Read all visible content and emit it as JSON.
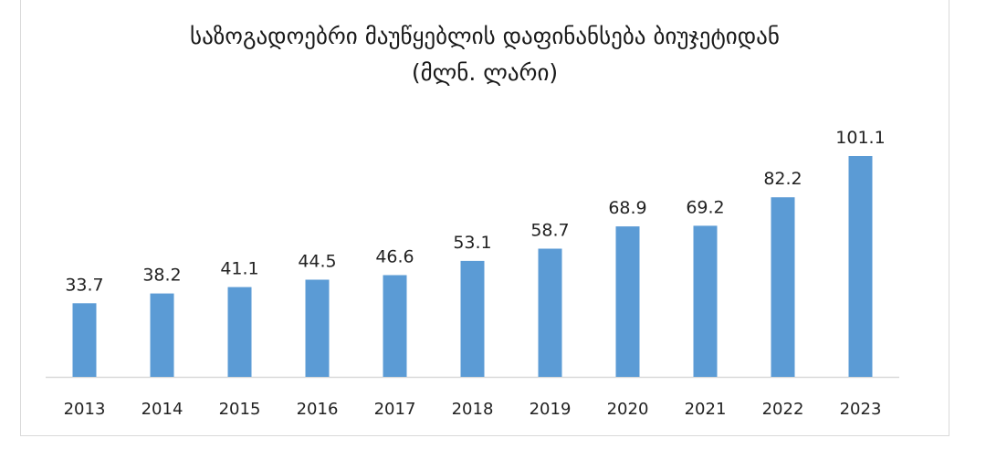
{
  "chart_data": {
    "type": "bar",
    "title": "საზოგადოებრი მაუწყებლის დაფინანსება ბიუჯეტიდან",
    "subtitle": "(მლნ. ლარი)",
    "xlabel": "",
    "ylabel": "",
    "categories": [
      "2013",
      "2014",
      "2015",
      "2016",
      "2017",
      "2018",
      "2019",
      "2020",
      "2021",
      "2022",
      "2023"
    ],
    "values": [
      33.7,
      38.2,
      41.1,
      44.5,
      46.6,
      53.1,
      58.7,
      68.9,
      69.2,
      82.2,
      101.1
    ],
    "value_labels": [
      "33.7",
      "38.2",
      "41.1",
      "44.5",
      "46.6",
      "53.1",
      "58.7",
      "68.9",
      "69.2",
      "82.2",
      "101.1"
    ],
    "ylim": [
      0,
      101.1
    ],
    "grid": false,
    "legend": "none",
    "bar_color": "#5b9bd5",
    "axis_color": "#d9d9d9"
  }
}
